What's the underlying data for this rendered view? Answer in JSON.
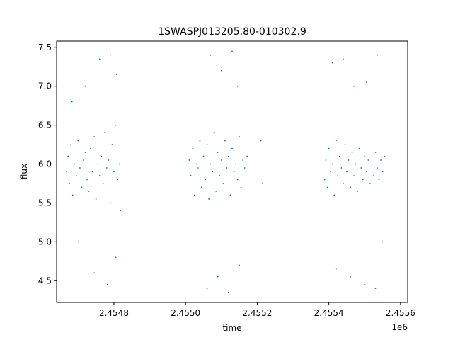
{
  "chart_data": {
    "type": "scatter",
    "title": "1SWASPJ013205.80-010302.9",
    "xlabel": "time",
    "ylabel": "flux",
    "x_offset_label": "1e6",
    "xlim": [
      2454640,
      2455620
    ],
    "ylim": [
      4.22,
      7.58
    ],
    "x_ticks": [
      2454800,
      2455000,
      2455200,
      2455400,
      2455600
    ],
    "x_tick_labels": [
      "2.4548",
      "2.4550",
      "2.4552",
      "2.4554",
      "2.4556"
    ],
    "y_ticks": [
      4.5,
      5.0,
      5.5,
      6.0,
      6.5,
      7.0,
      7.5
    ],
    "y_tick_labels": [
      "4.5",
      "5.0",
      "5.5",
      "6.0",
      "6.5",
      "7.0",
      "7.5"
    ],
    "grid": false,
    "point_color": "#1f77b4",
    "series": [
      {
        "points": [
          [
            2454668,
            5.9
          ],
          [
            2454672,
            6.1
          ],
          [
            2454676,
            5.75
          ],
          [
            2454680,
            6.25
          ],
          [
            2454685,
            5.6
          ],
          [
            2454690,
            6.0
          ],
          [
            2454695,
            5.85
          ],
          [
            2454700,
            6.3
          ],
          [
            2454705,
            5.95
          ],
          [
            2454710,
            5.7
          ],
          [
            2454715,
            6.05
          ],
          [
            2454720,
            6.15
          ],
          [
            2454725,
            5.8
          ],
          [
            2454730,
            5.65
          ],
          [
            2454735,
            6.2
          ],
          [
            2454740,
            5.9
          ],
          [
            2454745,
            6.35
          ],
          [
            2454750,
            5.55
          ],
          [
            2454755,
            6.0
          ],
          [
            2454760,
            5.85
          ],
          [
            2454765,
            6.1
          ],
          [
            2454770,
            5.75
          ],
          [
            2454775,
            6.4
          ],
          [
            2454780,
            5.95
          ],
          [
            2454785,
            6.05
          ],
          [
            2454790,
            5.5
          ],
          [
            2454795,
            6.25
          ],
          [
            2454800,
            5.9
          ],
          [
            2454805,
            6.5
          ],
          [
            2454810,
            5.8
          ],
          [
            2454815,
            6.0
          ],
          [
            2454818,
            5.4
          ],
          [
            2454683,
            6.8
          ],
          [
            2454720,
            7.0
          ],
          [
            2454760,
            7.35
          ],
          [
            2454790,
            7.4
          ],
          [
            2454808,
            7.15
          ],
          [
            2454700,
            5.0
          ],
          [
            2454745,
            4.6
          ],
          [
            2454782,
            4.45
          ],
          [
            2454805,
            4.8
          ],
          [
            2455010,
            6.05
          ],
          [
            2455015,
            5.85
          ],
          [
            2455020,
            6.2
          ],
          [
            2455025,
            5.6
          ],
          [
            2455030,
            6.0
          ],
          [
            2455035,
            5.95
          ],
          [
            2455040,
            6.3
          ],
          [
            2455045,
            5.7
          ],
          [
            2455050,
            6.1
          ],
          [
            2455055,
            5.8
          ],
          [
            2455060,
            6.25
          ],
          [
            2455065,
            5.55
          ],
          [
            2455070,
            6.0
          ],
          [
            2455075,
            5.9
          ],
          [
            2455080,
            6.4
          ],
          [
            2455085,
            5.65
          ],
          [
            2455090,
            6.15
          ],
          [
            2455095,
            5.85
          ],
          [
            2455100,
            6.05
          ],
          [
            2455105,
            5.75
          ],
          [
            2455110,
            6.3
          ],
          [
            2455115,
            5.95
          ],
          [
            2455120,
            6.1
          ],
          [
            2455125,
            5.6
          ],
          [
            2455130,
            6.2
          ],
          [
            2455135,
            5.9
          ],
          [
            2455140,
            6.0
          ],
          [
            2455145,
            5.8
          ],
          [
            2455150,
            6.35
          ],
          [
            2455155,
            5.7
          ],
          [
            2455160,
            6.05
          ],
          [
            2455165,
            5.95
          ],
          [
            2455172,
            6.1
          ],
          [
            2455070,
            7.4
          ],
          [
            2455100,
            7.2
          ],
          [
            2455130,
            7.45
          ],
          [
            2455145,
            7.0
          ],
          [
            2455060,
            4.4
          ],
          [
            2455090,
            4.55
          ],
          [
            2455120,
            4.35
          ],
          [
            2455150,
            4.7
          ],
          [
            2455210,
            6.3
          ],
          [
            2455215,
            5.75
          ],
          [
            2455388,
            5.8
          ],
          [
            2455392,
            6.05
          ],
          [
            2455396,
            5.7
          ],
          [
            2455400,
            6.2
          ],
          [
            2455405,
            5.9
          ],
          [
            2455410,
            6.0
          ],
          [
            2455415,
            5.6
          ],
          [
            2455420,
            6.3
          ],
          [
            2455425,
            5.85
          ],
          [
            2455430,
            6.1
          ],
          [
            2455435,
            5.95
          ],
          [
            2455440,
            5.75
          ],
          [
            2455445,
            6.25
          ],
          [
            2455450,
            5.9
          ],
          [
            2455455,
            6.05
          ],
          [
            2455460,
            5.7
          ],
          [
            2455465,
            6.15
          ],
          [
            2455470,
            5.85
          ],
          [
            2455475,
            6.0
          ],
          [
            2455480,
            5.65
          ],
          [
            2455485,
            6.2
          ],
          [
            2455490,
            5.95
          ],
          [
            2455495,
            5.8
          ],
          [
            2455500,
            6.1
          ],
          [
            2455505,
            5.9
          ],
          [
            2455510,
            6.05
          ],
          [
            2455515,
            5.75
          ],
          [
            2455520,
            6.0
          ],
          [
            2455525,
            5.85
          ],
          [
            2455530,
            6.15
          ],
          [
            2455535,
            5.95
          ],
          [
            2455540,
            5.8
          ],
          [
            2455545,
            6.05
          ],
          [
            2455550,
            5.9
          ],
          [
            2455555,
            6.1
          ],
          [
            2455410,
            7.3
          ],
          [
            2455440,
            7.35
          ],
          [
            2455470,
            7.0
          ],
          [
            2455505,
            7.05
          ],
          [
            2455535,
            7.4
          ],
          [
            2455420,
            4.65
          ],
          [
            2455460,
            4.55
          ],
          [
            2455500,
            4.45
          ],
          [
            2455530,
            4.4
          ],
          [
            2455550,
            5.0
          ]
        ]
      }
    ]
  }
}
